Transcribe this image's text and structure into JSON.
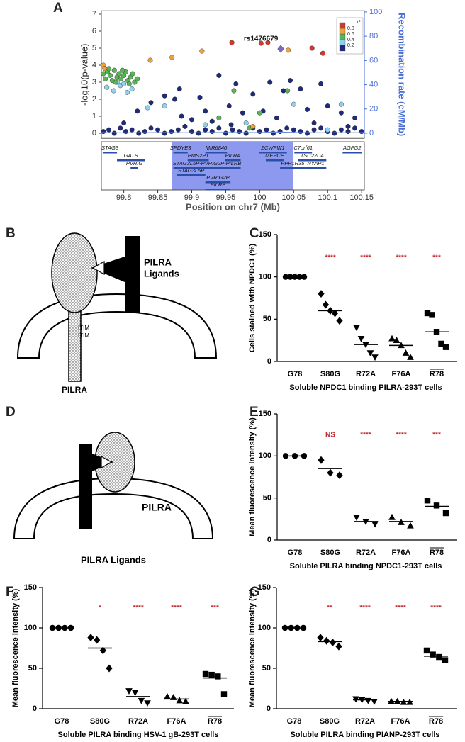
{
  "panel_labels": [
    "A",
    "B",
    "C",
    "D",
    "E",
    "F",
    "G"
  ],
  "diagram_b": {
    "ligand_label": [
      "PILRA",
      "Ligands"
    ],
    "motifs": [
      "ITIM",
      "ITIM"
    ],
    "receptor_label": "PILRA"
  },
  "diagram_d": {
    "receptor_label": "PILRA",
    "ligand_label": "PILRA Ligands"
  },
  "chart_data": [
    {
      "type": "scatter",
      "ylabel": "-log10(p-value)",
      "y2label": "Recombination rate (cM/Mb)",
      "xlabel": "Position on chr7 (Mb)",
      "xlim": [
        99.767,
        100.154
      ],
      "xticks": [
        99.8,
        99.85,
        99.9,
        99.95,
        100,
        100.05,
        100.1,
        100.15
      ],
      "ylim": [
        -0.3,
        7.2
      ],
      "yticks": [
        0,
        1,
        2,
        3,
        4,
        5,
        6,
        7
      ],
      "y2lim": [
        -4.2,
        101
      ],
      "y2ticks": [
        0,
        20,
        40,
        60,
        80,
        100
      ],
      "highlight": [
        99.871,
        100.049
      ],
      "series": [
        {
          "color": "#1f2a78",
          "marker": "circle",
          "x": [
            99.77,
            99.778,
            99.786,
            99.795,
            99.803,
            99.812,
            99.822,
            99.831,
            99.84,
            99.85,
            99.86,
            99.87,
            99.88,
            99.89,
            99.9,
            99.91,
            99.92,
            99.93,
            99.94,
            99.95,
            99.96,
            99.97,
            99.98,
            99.99,
            100.0,
            100.01,
            100.02,
            100.03,
            100.04,
            100.05,
            100.06,
            100.07,
            100.08,
            100.09,
            100.1,
            100.11,
            100.12,
            100.13,
            100.14,
            100.15,
            99.84,
            99.86,
            99.875,
            99.885,
            99.9,
            99.92,
            99.94,
            99.955,
            99.965,
            99.975,
            99.99,
            100.005,
            100.015,
            100.025,
            100.035,
            100.045,
            100.06,
            100.07,
            100.09,
            100.1,
            100.12,
            100.14,
            99.82,
            99.8,
            99.93,
            99.958,
            100.08,
            100.13,
            99.882,
            99.912
          ],
          "values": [
            0.1,
            0.2,
            0,
            0.3,
            0.1,
            0.2,
            0,
            0.1,
            0.3,
            0.2,
            0,
            0.1,
            0.2,
            0.4,
            0.1,
            0,
            0.2,
            0.1,
            0.3,
            0,
            0.2,
            0.1,
            0,
            0.3,
            0.1,
            0.2,
            0,
            0.1,
            0.3,
            0.2,
            0.1,
            0,
            0.2,
            0.3,
            0.1,
            0,
            0.2,
            0.1,
            0.3,
            0.1,
            1.8,
            2.2,
            2.0,
            1.0,
            0.8,
            1.3,
            3.4,
            1.6,
            2.9,
            1.2,
            2.3,
            1.3,
            3.0,
            0.9,
            2.5,
            3.1,
            2.6,
            1.4,
            2.9,
            1.6,
            1.2,
            0.9,
            1.3,
            0.6,
            0.7,
            0.5,
            0.6,
            0.4,
            2.6,
            2.1
          ]
        },
        {
          "color": "#8fd2f0",
          "marker": "circle",
          "x": [
            99.775,
            99.785,
            99.795,
            99.805,
            99.812,
            99.835,
            99.86,
            99.92,
            99.98,
            100.05,
            100.1,
            100.12,
            99.79,
            99.8
          ],
          "values": [
            2.7,
            2.5,
            2.8,
            2.4,
            2.6,
            1.5,
            1.6,
            0.5,
            0.6,
            1.7,
            0.2,
            1.7,
            3.0,
            2.9
          ]
        },
        {
          "color": "#5ab45a",
          "marker": "circle",
          "x": [
            99.77,
            99.773,
            99.776,
            99.78,
            99.783,
            99.786,
            99.79,
            99.793,
            99.796,
            99.8,
            99.803,
            99.806,
            99.81,
            99.813,
            99.816,
            99.82,
            99.778,
            99.788,
            99.798,
            99.808,
            99.94,
            99.962,
            100.0,
            100.041,
            99.985
          ],
          "values": [
            3.5,
            3.2,
            3.6,
            3.4,
            3.1,
            3.7,
            3.3,
            3.5,
            3.2,
            3.4,
            3.6,
            3.1,
            3.3,
            3.5,
            3.0,
            3.2,
            3.8,
            3.0,
            3.7,
            2.9,
            0.9,
            2.5,
            1.2,
            2.5,
            0.3
          ]
        },
        {
          "color": "#f0a23a",
          "marker": "circle",
          "x": [
            99.77,
            99.839,
            99.871,
            99.915,
            100.042,
            99.772,
            99.99
          ],
          "values": [
            4.0,
            4.29,
            4.46,
            4.83,
            4.88,
            3.8,
            0.4
          ]
        },
        {
          "color": "#d0392f",
          "marker": "circle",
          "x": [
            99.959,
            100.002,
            100.012,
            100.077,
            100.093
          ],
          "values": [
            5.33,
            5.29,
            5.33,
            5.0,
            4.7
          ]
        },
        {
          "color": "#7b68c8",
          "marker": "diamond",
          "x": [
            100.031
          ],
          "values": [
            4.96
          ]
        },
        {
          "color": "#6a8ad8",
          "mode": "line",
          "axis": "y2",
          "x": [
            99.767,
            99.8,
            99.85,
            99.9,
            99.95,
            100.0,
            100.02,
            100.04,
            100.06,
            100.1,
            100.154
          ],
          "values": [
            0.5,
            0.3,
            0.5,
            0.4,
            0.6,
            0.5,
            1.0,
            0.8,
            0.5,
            0.4,
            0.5
          ]
        }
      ],
      "annotation": "rs1476679",
      "legend": {
        "title": "r²",
        "lim": [
          0,
          1
        ],
        "ticks": [
          0.2,
          0.4,
          0.6,
          0.8
        ]
      },
      "genes": [
        {
          "name": "STAG3",
          "start": 99.769,
          "end": 99.79
        },
        {
          "name": "GATS",
          "start": 99.79,
          "end": 99.831
        },
        {
          "name": "PVRIG",
          "start": 99.81,
          "end": 99.821
        },
        {
          "name": "SPDYE3",
          "start": 99.873,
          "end": 99.894
        },
        {
          "name": "MIR6840",
          "start": 99.92,
          "end": 99.952
        },
        {
          "name": "ZCWPW1",
          "start": 99.999,
          "end": 100.04
        },
        {
          "name": "C7orf61",
          "start": 100.051,
          "end": 100.077
        },
        {
          "name": "AGFG2",
          "start": 100.122,
          "end": 100.15
        },
        {
          "name": "PMS2P1",
          "start": 99.894,
          "end": 99.925
        },
        {
          "name": "PILRA",
          "start": 99.949,
          "end": 99.972
        },
        {
          "name": "MEPCE",
          "start": 100.009,
          "end": 100.035
        },
        {
          "name": "TSC22D4",
          "start": 100.056,
          "end": 100.098
        },
        {
          "name": "STAG3L5P-PVRIG2P-PILRB",
          "start": 99.873,
          "end": 99.972
        },
        {
          "name": "PPP1R35",
          "start": 100.03,
          "end": 100.067
        },
        {
          "name": "NYAP1",
          "start": 100.067,
          "end": 100.098
        },
        {
          "name": "STAG3L5P",
          "start": 99.878,
          "end": 99.92
        },
        {
          "name": "PVRIG2P",
          "start": 99.92,
          "end": 99.957
        },
        {
          "name": "PILRB",
          "start": 99.92,
          "end": 99.957
        }
      ]
    },
    {
      "type": "strip",
      "ylabel": "Cells stained with NPDC1 (%)",
      "xlabel": "Soluble NPDC1 binding PILRA-293T cells",
      "categories": [
        "G78",
        "S80G",
        "R72A",
        "F76A",
        "R78"
      ],
      "overline": [
        false,
        false,
        false,
        false,
        true
      ],
      "markers": [
        "circle",
        "diamond",
        "triangle-down",
        "triangle-up",
        "square"
      ],
      "color": "#000000",
      "values": [
        [
          100,
          100,
          100,
          100,
          100
        ],
        [
          80,
          67,
          60,
          57,
          48
        ],
        [
          40,
          27,
          20,
          10,
          5
        ],
        [
          27,
          25,
          19,
          10,
          5
        ],
        [
          57,
          55,
          35,
          21,
          17
        ]
      ],
      "center_values": [
        100,
        60,
        20,
        19,
        35
      ],
      "significance": [
        null,
        "****",
        "****",
        "****",
        "***"
      ],
      "significance_color": "#c0272d",
      "ylim": [
        0,
        150
      ],
      "yticks": [
        0,
        50,
        100,
        150
      ]
    },
    {
      "type": "strip",
      "ylabel": "Mean fluorescence intensity (%)",
      "xlabel": "Soluble PILRA binding NPDC1-293T cells",
      "categories": [
        "G78",
        "S80G",
        "R72A",
        "F76A",
        "R78"
      ],
      "overline": [
        false,
        false,
        false,
        false,
        true
      ],
      "markers": [
        "circle",
        "diamond",
        "triangle-down",
        "triangle-up",
        "square"
      ],
      "color": "#000000",
      "values": [
        [
          100,
          100,
          100
        ],
        [
          95,
          80,
          77
        ],
        [
          27,
          22,
          19
        ],
        [
          27,
          21,
          17
        ],
        [
          47,
          41,
          32
        ]
      ],
      "center_values": [
        100,
        85,
        22,
        22,
        40
      ],
      "significance": [
        null,
        "NS",
        "****",
        "****",
        "***"
      ],
      "significance_color": "#c0272d",
      "ylim": [
        0,
        150
      ],
      "yticks": [
        0,
        50,
        100,
        150
      ]
    },
    {
      "type": "strip",
      "ylabel": "Mean fluorescence intensity (%)",
      "xlabel": "Soluble PILRA binding HSV-1 gB-293T cells",
      "categories": [
        "G78",
        "S80G",
        "R72A",
        "F76A",
        "R78"
      ],
      "overline": [
        false,
        false,
        false,
        false,
        true
      ],
      "markers": [
        "circle",
        "diamond",
        "triangle-down",
        "triangle-up",
        "square"
      ],
      "color": "#000000",
      "values": [
        [
          100,
          100,
          100,
          100
        ],
        [
          88,
          85,
          72,
          50
        ],
        [
          22,
          20,
          10,
          7
        ],
        [
          15,
          14,
          10,
          9
        ],
        [
          43,
          42,
          40,
          18
        ]
      ],
      "center_values": [
        100,
        75,
        15,
        12,
        38
      ],
      "significance": [
        null,
        "*",
        "****",
        "****",
        "***"
      ],
      "significance_color": "#c0272d",
      "ylim": [
        0,
        150
      ],
      "yticks": [
        0,
        50,
        100,
        150
      ]
    },
    {
      "type": "strip",
      "ylabel": "Mean fluorescence intensity (%)",
      "xlabel": "Soluble PILRA binding PIANP-293T cells",
      "categories": [
        "G78",
        "S80G",
        "R72A",
        "F76A",
        "R78"
      ],
      "overline": [
        false,
        false,
        false,
        false,
        true
      ],
      "markers": [
        "circle",
        "diamond",
        "triangle-down",
        "triangle-up",
        "square"
      ],
      "color": "#000000",
      "values": [
        [
          100,
          100,
          100,
          100
        ],
        [
          88,
          84,
          82,
          77
        ],
        [
          12,
          11,
          10,
          9
        ],
        [
          9,
          9,
          8,
          8
        ],
        [
          72,
          67,
          64,
          60
        ]
      ],
      "center_values": [
        100,
        83,
        11,
        9,
        65
      ],
      "significance": [
        null,
        "**",
        "****",
        "****",
        "****"
      ],
      "significance_color": "#c0272d",
      "ylim": [
        0,
        150
      ],
      "yticks": [
        0,
        50,
        100,
        150
      ]
    }
  ]
}
